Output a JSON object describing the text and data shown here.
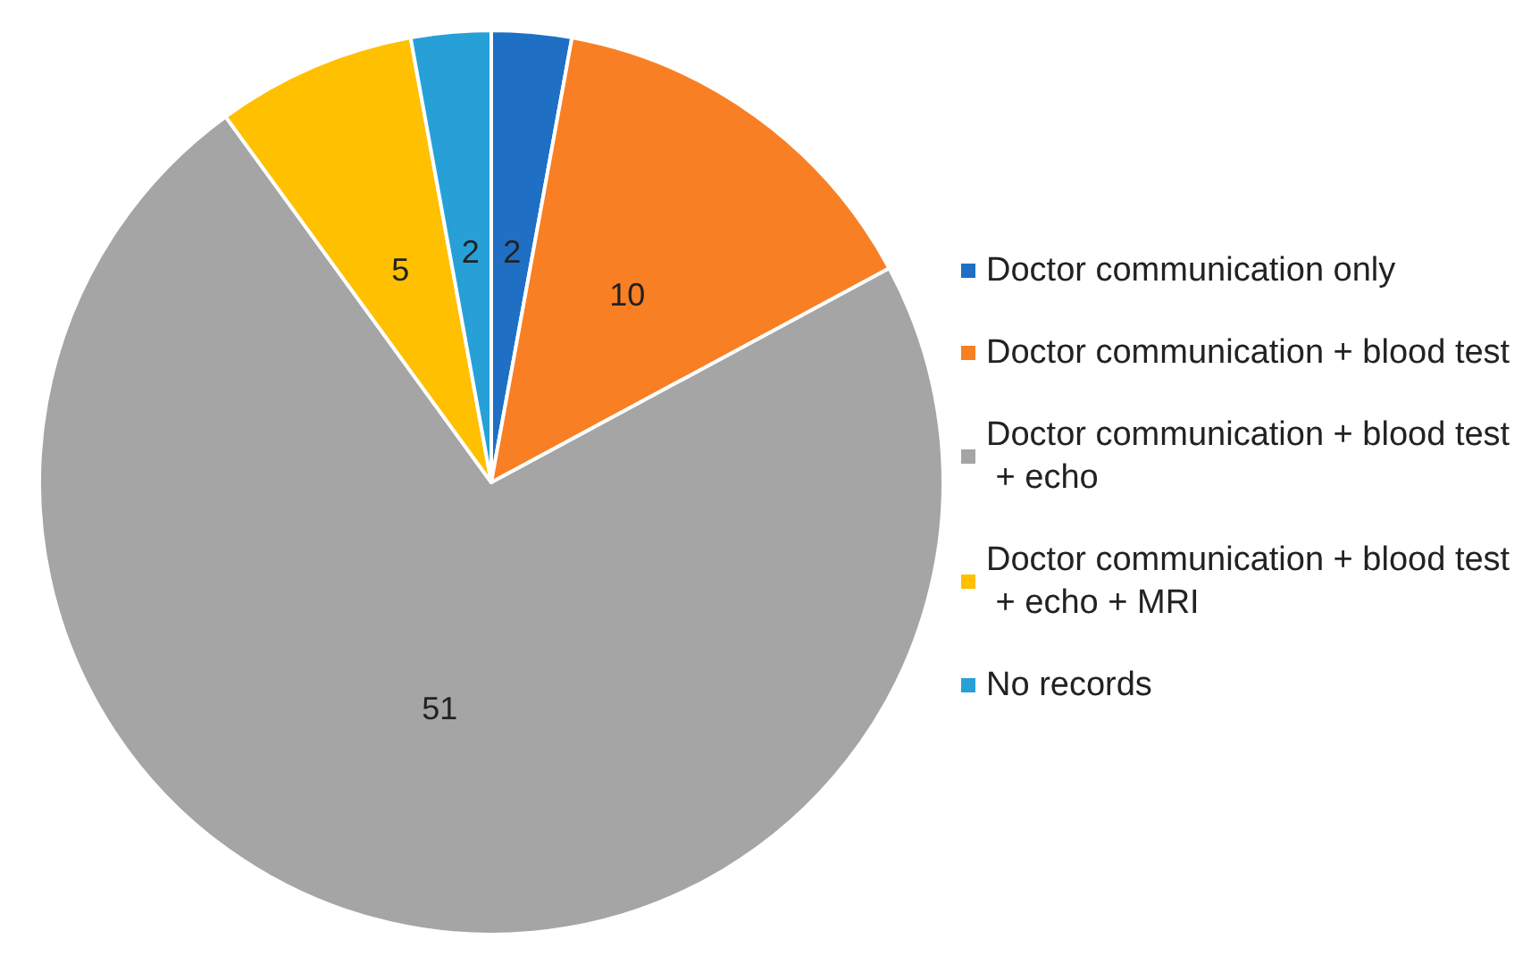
{
  "chart_data": {
    "type": "pie",
    "categories": [
      "Doctor communication only",
      "Doctor communication + blood test",
      "Doctor communication + blood test + echo",
      "Doctor communication + blood test + echo + MRI",
      "No records"
    ],
    "values": [
      2,
      10,
      51,
      5,
      2
    ],
    "colors": [
      "#1f6fc5",
      "#f97f24",
      "#a5a5a5",
      "#ffc000",
      "#27a0d8"
    ],
    "data_labels": true,
    "legend": "right"
  }
}
